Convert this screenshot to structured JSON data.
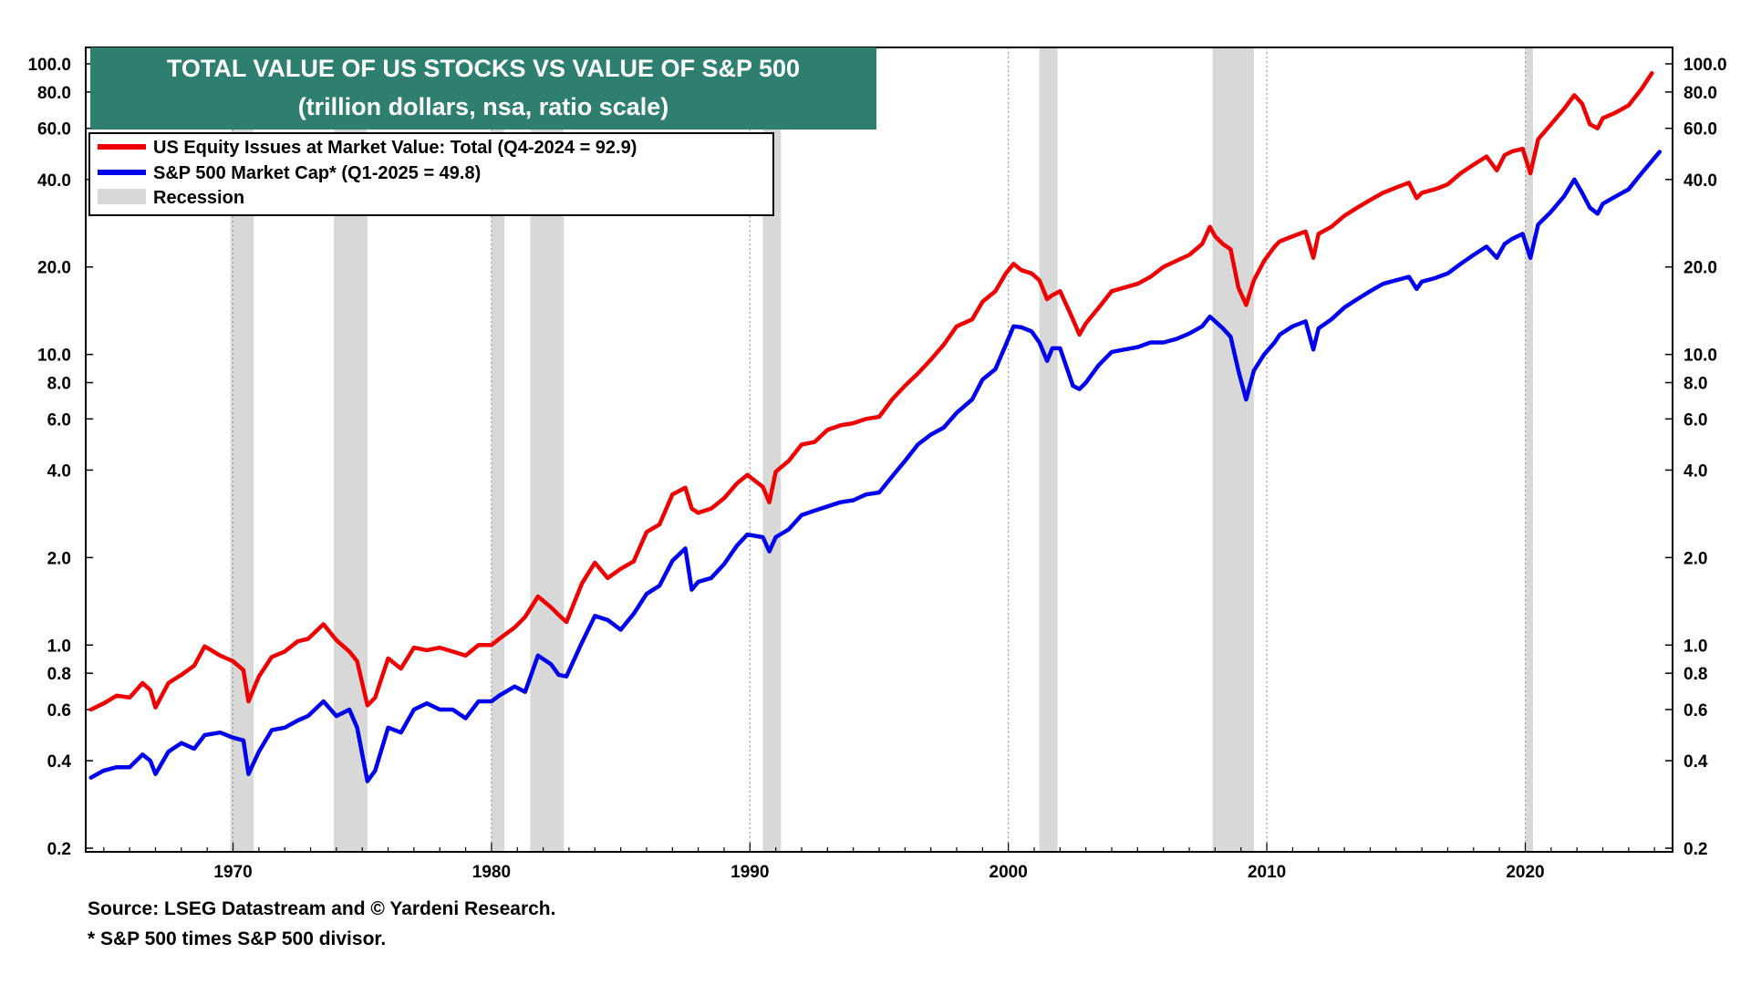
{
  "chart_data": {
    "type": "line",
    "title": "TOTAL VALUE OF US STOCKS VS VALUE OF S&P 500",
    "subtitle": "(trillion dollars, nsa, ratio scale)",
    "scale": "log",
    "ylim": [
      0.2,
      130
    ],
    "xlim": [
      1964.3,
      2025.7
    ],
    "y_ticks": [
      0.2,
      0.4,
      0.6,
      0.8,
      1.0,
      2.0,
      4.0,
      6.0,
      8.0,
      10.0,
      20.0,
      40.0,
      60.0,
      80.0,
      100.0
    ],
    "y_tick_labels": [
      "0.2",
      "0.4",
      "0.6",
      "0.8",
      "1.0",
      "2.0",
      "4.0",
      "6.0",
      "8.0",
      "10.0",
      "20.0",
      "40.0",
      "60.0",
      "80.0",
      "100.0"
    ],
    "x_ticks": [
      1970,
      1980,
      1990,
      2000,
      2010,
      2020
    ],
    "x_tick_labels": [
      "1970",
      "1980",
      "1990",
      "2000",
      "2010",
      "2020"
    ],
    "legend_position": "top-left",
    "grid": "vertical dotted at decades",
    "recessions": [
      [
        1969.9,
        1970.8
      ],
      [
        1973.9,
        1975.2
      ],
      [
        1980.0,
        1980.5
      ],
      [
        1981.5,
        1982.8
      ],
      [
        1990.5,
        1991.2
      ],
      [
        2001.2,
        2001.9
      ],
      [
        2007.9,
        2009.5
      ],
      [
        2020.0,
        2020.3
      ]
    ],
    "series": [
      {
        "name": "US Equity Issues at Market Value: Total (Q4-2024 = 92.9)",
        "color": "#ee0000",
        "x": [
          1964.5,
          1965.0,
          1965.5,
          1966.0,
          1966.5,
          1966.8,
          1967.0,
          1967.5,
          1968.0,
          1968.5,
          1968.9,
          1969.5,
          1970.0,
          1970.4,
          1970.6,
          1971.0,
          1971.5,
          1972.0,
          1972.5,
          1972.9,
          1973.5,
          1974.0,
          1974.5,
          1974.8,
          1975.2,
          1975.5,
          1976.0,
          1976.5,
          1977.0,
          1977.5,
          1978.0,
          1978.5,
          1979.0,
          1979.5,
          1980.0,
          1980.3,
          1980.9,
          1981.3,
          1981.8,
          1982.3,
          1982.6,
          1982.9,
          1983.5,
          1984.0,
          1984.5,
          1985.0,
          1985.5,
          1986.0,
          1986.5,
          1987.0,
          1987.5,
          1987.75,
          1988.0,
          1988.5,
          1989.0,
          1989.5,
          1989.9,
          1990.5,
          1990.75,
          1991.0,
          1991.5,
          1992.0,
          1992.5,
          1993.0,
          1993.5,
          1994.0,
          1994.5,
          1995.0,
          1995.5,
          1996.0,
          1996.5,
          1997.0,
          1997.5,
          1998.0,
          1998.6,
          1999.0,
          1999.5,
          1999.9,
          2000.2,
          2000.5,
          2000.9,
          2001.2,
          2001.5,
          2001.7,
          2002.0,
          2002.5,
          2002.75,
          2003.0,
          2003.5,
          2004.0,
          2004.5,
          2005.0,
          2005.5,
          2006.0,
          2006.5,
          2007.0,
          2007.5,
          2007.8,
          2008.0,
          2008.3,
          2008.6,
          2008.9,
          2009.2,
          2009.5,
          2009.9,
          2010.3,
          2010.5,
          2011.0,
          2011.5,
          2011.8,
          2012.0,
          2012.5,
          2013.0,
          2013.5,
          2014.0,
          2014.5,
          2015.0,
          2015.5,
          2015.8,
          2016.0,
          2016.5,
          2017.0,
          2017.5,
          2018.0,
          2018.5,
          2018.9,
          2019.2,
          2019.5,
          2019.9,
          2020.2,
          2020.5,
          2021.0,
          2021.5,
          2021.9,
          2022.2,
          2022.5,
          2022.8,
          2023.0,
          2023.5,
          2024.0,
          2024.5,
          2024.9
        ],
        "values": [
          0.6,
          0.63,
          0.67,
          0.66,
          0.74,
          0.7,
          0.61,
          0.74,
          0.79,
          0.85,
          0.99,
          0.92,
          0.88,
          0.82,
          0.64,
          0.78,
          0.91,
          0.95,
          1.03,
          1.05,
          1.18,
          1.04,
          0.95,
          0.88,
          0.62,
          0.66,
          0.9,
          0.83,
          0.98,
          0.96,
          0.98,
          0.95,
          0.92,
          1.0,
          1.0,
          1.05,
          1.15,
          1.25,
          1.47,
          1.35,
          1.27,
          1.2,
          1.63,
          1.92,
          1.7,
          1.83,
          1.94,
          2.45,
          2.6,
          3.3,
          3.48,
          2.95,
          2.85,
          2.95,
          3.2,
          3.6,
          3.85,
          3.5,
          3.1,
          3.95,
          4.3,
          4.9,
          5.0,
          5.5,
          5.7,
          5.8,
          6.0,
          6.1,
          7.0,
          7.8,
          8.6,
          9.6,
          10.8,
          12.5,
          13.2,
          15.2,
          16.5,
          19.0,
          20.5,
          19.5,
          19.0,
          18.0,
          15.5,
          16.0,
          16.5,
          13.2,
          11.7,
          12.8,
          14.5,
          16.5,
          17.0,
          17.5,
          18.5,
          20.0,
          21.0,
          22.0,
          24.0,
          27.5,
          25.5,
          24.0,
          23.0,
          17.0,
          14.8,
          18.0,
          21.0,
          23.5,
          24.5,
          25.5,
          26.5,
          21.5,
          26.0,
          27.5,
          30.0,
          32.0,
          34.0,
          36.0,
          37.5,
          39.0,
          34.5,
          36.0,
          37.0,
          38.5,
          42.0,
          45.0,
          48.0,
          43.0,
          48.5,
          50.0,
          51.0,
          42.0,
          55.0,
          62.0,
          70.0,
          78.0,
          73.0,
          62.0,
          60.0,
          65.0,
          68.0,
          72.0,
          82.0,
          92.9
        ]
      },
      {
        "name": "S&P 500 Market Cap* (Q1-2025 = 49.8)",
        "color": "#0000ee",
        "x": [
          1964.5,
          1965.0,
          1965.5,
          1966.0,
          1966.5,
          1966.8,
          1967.0,
          1967.5,
          1968.0,
          1968.5,
          1968.9,
          1969.5,
          1970.0,
          1970.4,
          1970.6,
          1971.0,
          1971.5,
          1972.0,
          1972.5,
          1972.9,
          1973.5,
          1974.0,
          1974.5,
          1974.8,
          1975.2,
          1975.5,
          1976.0,
          1976.5,
          1977.0,
          1977.5,
          1978.0,
          1978.5,
          1979.0,
          1979.5,
          1980.0,
          1980.3,
          1980.9,
          1981.3,
          1981.8,
          1982.3,
          1982.6,
          1982.9,
          1983.5,
          1984.0,
          1984.5,
          1985.0,
          1985.5,
          1986.0,
          1986.5,
          1987.0,
          1987.5,
          1987.75,
          1988.0,
          1988.5,
          1989.0,
          1989.5,
          1989.9,
          1990.5,
          1990.75,
          1991.0,
          1991.5,
          1992.0,
          1992.5,
          1993.0,
          1993.5,
          1994.0,
          1994.5,
          1995.0,
          1995.5,
          1996.0,
          1996.5,
          1997.0,
          1997.5,
          1998.0,
          1998.6,
          1999.0,
          1999.5,
          1999.9,
          2000.2,
          2000.5,
          2000.9,
          2001.2,
          2001.5,
          2001.7,
          2002.0,
          2002.5,
          2002.75,
          2003.0,
          2003.5,
          2004.0,
          2004.5,
          2005.0,
          2005.5,
          2006.0,
          2006.5,
          2007.0,
          2007.5,
          2007.8,
          2008.0,
          2008.3,
          2008.6,
          2008.9,
          2009.2,
          2009.5,
          2009.9,
          2010.3,
          2010.5,
          2011.0,
          2011.5,
          2011.8,
          2012.0,
          2012.5,
          2013.0,
          2013.5,
          2014.0,
          2014.5,
          2015.0,
          2015.5,
          2015.8,
          2016.0,
          2016.5,
          2017.0,
          2017.5,
          2018.0,
          2018.5,
          2018.9,
          2019.2,
          2019.5,
          2019.9,
          2020.2,
          2020.5,
          2021.0,
          2021.5,
          2021.9,
          2022.2,
          2022.5,
          2022.8,
          2023.0,
          2023.5,
          2024.0,
          2024.5,
          2025.2
        ],
        "values": [
          0.35,
          0.37,
          0.38,
          0.38,
          0.42,
          0.4,
          0.36,
          0.43,
          0.46,
          0.44,
          0.49,
          0.5,
          0.48,
          0.47,
          0.36,
          0.43,
          0.51,
          0.52,
          0.55,
          0.57,
          0.64,
          0.57,
          0.6,
          0.52,
          0.34,
          0.37,
          0.52,
          0.5,
          0.6,
          0.63,
          0.6,
          0.6,
          0.56,
          0.64,
          0.64,
          0.67,
          0.72,
          0.69,
          0.92,
          0.86,
          0.79,
          0.78,
          1.02,
          1.26,
          1.22,
          1.13,
          1.28,
          1.5,
          1.6,
          1.95,
          2.15,
          1.55,
          1.65,
          1.7,
          1.9,
          2.2,
          2.4,
          2.35,
          2.1,
          2.35,
          2.5,
          2.8,
          2.9,
          3.0,
          3.1,
          3.15,
          3.3,
          3.35,
          3.8,
          4.3,
          4.9,
          5.3,
          5.6,
          6.3,
          7.0,
          8.2,
          8.9,
          10.8,
          12.5,
          12.4,
          12.0,
          11.0,
          9.5,
          10.5,
          10.5,
          7.8,
          7.6,
          8.0,
          9.2,
          10.2,
          10.4,
          10.6,
          11.0,
          11.0,
          11.3,
          11.8,
          12.5,
          13.5,
          13.0,
          12.3,
          11.5,
          8.8,
          7.0,
          8.8,
          10.0,
          11.0,
          11.7,
          12.5,
          13.0,
          10.4,
          12.3,
          13.2,
          14.5,
          15.5,
          16.5,
          17.5,
          18.0,
          18.5,
          16.8,
          17.8,
          18.3,
          19.0,
          20.5,
          22.0,
          23.5,
          21.5,
          24.0,
          25.0,
          26.0,
          21.5,
          28.0,
          31.0,
          35.0,
          40.0,
          36.0,
          32.0,
          30.5,
          33.0,
          35.0,
          37.0,
          42.0,
          49.8
        ]
      },
      {
        "name": "Recession",
        "color": "#d8d8d8"
      }
    ]
  },
  "footer": {
    "source": "Source: LSEG Datastream and © Yardeni Research.",
    "note": "* S&P 500 times S&P 500 divisor."
  }
}
